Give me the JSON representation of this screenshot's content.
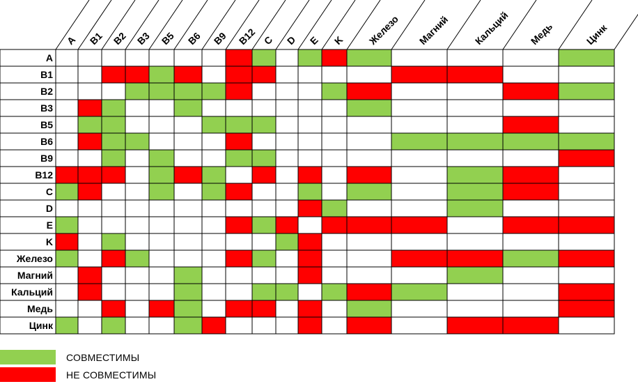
{
  "table": {
    "columns": [
      "A",
      "B1",
      "B2",
      "B3",
      "B5",
      "B6",
      "B9",
      "B12",
      "C",
      "D",
      "E",
      "K",
      "Железо",
      "Магний",
      "Кальций",
      "Медь",
      "Цинк"
    ],
    "rows": [
      {
        "label": "A",
        "cells": [
          "",
          "",
          "",
          "",
          "",
          "",
          "",
          "R",
          "G",
          "",
          "G",
          "R",
          "G",
          "",
          "",
          "",
          "G"
        ]
      },
      {
        "label": "B1",
        "cells": [
          "",
          "",
          "R",
          "R",
          "G",
          "R",
          "",
          "R",
          "R",
          "",
          "",
          "",
          "",
          "R",
          "R",
          "",
          ""
        ]
      },
      {
        "label": "B2",
        "cells": [
          "",
          "",
          "",
          "G",
          "G",
          "G",
          "G",
          "R",
          "",
          "",
          "",
          "G",
          "R",
          "",
          "",
          "R",
          "G"
        ]
      },
      {
        "label": "B3",
        "cells": [
          "",
          "R",
          "G",
          "",
          "",
          "G",
          "",
          "",
          "",
          "",
          "",
          "",
          "G",
          "",
          "",
          "",
          ""
        ]
      },
      {
        "label": "B5",
        "cells": [
          "",
          "G",
          "G",
          "",
          "",
          "",
          "G",
          "G",
          "G",
          "",
          "",
          "",
          "",
          "",
          "",
          "R",
          ""
        ]
      },
      {
        "label": "B6",
        "cells": [
          "",
          "R",
          "G",
          "G",
          "",
          "",
          "",
          "R",
          "",
          "",
          "",
          "",
          "",
          "G",
          "G",
          "G",
          "G"
        ]
      },
      {
        "label": "B9",
        "cells": [
          "",
          "",
          "G",
          "",
          "G",
          "",
          "",
          "G",
          "G",
          "",
          "",
          "",
          "",
          "",
          "",
          "",
          "R"
        ]
      },
      {
        "label": "B12",
        "cells": [
          "R",
          "R",
          "R",
          "",
          "G",
          "R",
          "G",
          "",
          "R",
          "",
          "R",
          "",
          "R",
          "",
          "G",
          "R",
          ""
        ]
      },
      {
        "label": "C",
        "cells": [
          "G",
          "R",
          "",
          "",
          "G",
          "",
          "G",
          "R",
          "",
          "",
          "G",
          "",
          "G",
          "",
          "G",
          "R",
          ""
        ]
      },
      {
        "label": "D",
        "cells": [
          "",
          "",
          "",
          "",
          "",
          "",
          "",
          "",
          "",
          "",
          "R",
          "G",
          "",
          "",
          "G",
          "",
          ""
        ]
      },
      {
        "label": "E",
        "cells": [
          "G",
          "",
          "",
          "",
          "",
          "",
          "",
          "R",
          "G",
          "R",
          "",
          "R",
          "R",
          "R",
          "",
          "R",
          "R"
        ]
      },
      {
        "label": "K",
        "cells": [
          "R",
          "",
          "G",
          "",
          "",
          "",
          "",
          "",
          "",
          "G",
          "R",
          "",
          "",
          "",
          "",
          "",
          ""
        ]
      },
      {
        "label": "Железо",
        "cells": [
          "G",
          "",
          "R",
          "G",
          "",
          "",
          "",
          "R",
          "G",
          "",
          "R",
          "",
          "",
          "R",
          "R",
          "G",
          "R"
        ]
      },
      {
        "label": "Магний",
        "cells": [
          "",
          "R",
          "",
          "",
          "",
          "G",
          "",
          "",
          "",
          "",
          "R",
          "",
          "",
          "",
          "G",
          "",
          ""
        ]
      },
      {
        "label": "Кальций",
        "cells": [
          "",
          "R",
          "",
          "",
          "",
          "G",
          "",
          "",
          "G",
          "G",
          "",
          "G",
          "R",
          "G",
          "",
          "",
          "R"
        ]
      },
      {
        "label": "Медь",
        "cells": [
          "",
          "",
          "R",
          "",
          "R",
          "G",
          "",
          "R",
          "R",
          "",
          "R",
          "",
          "G",
          "",
          "",
          "",
          "R"
        ]
      },
      {
        "label": "Цинк",
        "cells": [
          "G",
          "",
          "G",
          "",
          "",
          "G",
          "R",
          "",
          "",
          "",
          "R",
          "",
          "R",
          "",
          "R",
          "R",
          ""
        ]
      }
    ]
  },
  "legend": [
    {
      "key": "G",
      "label": "СОВМЕСТИМЫ"
    },
    {
      "key": "R",
      "label": "НЕ СОВМЕСТИМЫ"
    }
  ],
  "colors": {
    "G": "#92d050",
    "R": "#ff0000",
    "empty": "#ffffff"
  }
}
